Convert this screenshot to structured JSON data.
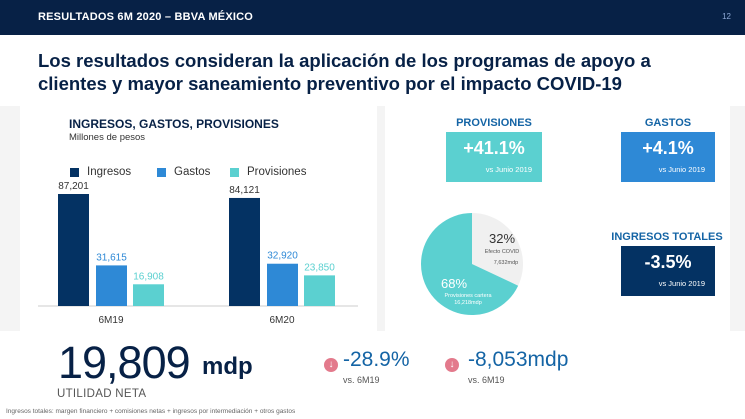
{
  "header": {
    "section_title": "RESULTADOS 6M 2020 – BBVA MÉXICO",
    "page_number": "12"
  },
  "headline": {
    "line1": "Los resultados consideran la aplicación de los programas de apoyo a",
    "line2": "clientes y mayor saneamiento preventivo por el impacto COVID-19"
  },
  "chart_data": {
    "type": "bar",
    "title": "INGRESOS, GASTOS, PROVISIONES",
    "subtitle": "Millones de pesos",
    "categories": [
      "6M19",
      "6M20"
    ],
    "series": [
      {
        "name": "Ingresos",
        "values": [
          87201,
          84121
        ],
        "labels": [
          "87,201",
          "84,121"
        ],
        "color": "#043263"
      },
      {
        "name": "Gastos",
        "values": [
          31615,
          32920
        ],
        "labels": [
          "31,615",
          "32,920"
        ],
        "color": "#2e89d6"
      },
      {
        "name": "Provisiones",
        "values": [
          16908,
          23850
        ],
        "labels": [
          "16,908",
          "23,850"
        ],
        "color": "#5bd0d0"
      }
    ],
    "ylim": [
      0,
      95000
    ]
  },
  "kpis": {
    "provisiones": {
      "label": "PROVISIONES",
      "value": "+41.1%",
      "caption": "vs Junio 2019",
      "color": "#5bd0d0"
    },
    "gastos": {
      "label": "GASTOS",
      "value": "+4.1%",
      "caption": "vs Junio 2019",
      "color": "#2e89d6"
    },
    "ingresos_totales": {
      "label": "INGRESOS TOTALES",
      "value": "-3.5%",
      "caption": "vs Junio 2019",
      "color": "#043263"
    }
  },
  "pie": {
    "slices": [
      {
        "pct": 32,
        "pct_label": "32%",
        "name": "Efecto COVID",
        "amount": "7,632mdp",
        "color": "#f0f0f0"
      },
      {
        "pct": 68,
        "pct_label": "68%",
        "name": "Provisiones cartera",
        "amount": "16,218mdp",
        "color": "#5bd0d0"
      }
    ]
  },
  "result": {
    "value": "19,809",
    "unit": "mdp",
    "label": "UTILIDAD NETA"
  },
  "changes": [
    {
      "value": "-28.9%",
      "caption": "vs. 6M19",
      "icon": "arrow-down-icon"
    },
    {
      "value": "-8,053mdp",
      "caption": "vs. 6M19",
      "icon": "arrow-down-icon"
    }
  ],
  "footnote": "Ingresos totales: margen financiero + comisiones netas + ingresos por intermediación + otros gastos",
  "colors": {
    "navy": "#072146",
    "blue": "#1464a5",
    "panel": "#f4f4f4",
    "negative": "#e37a8c"
  }
}
